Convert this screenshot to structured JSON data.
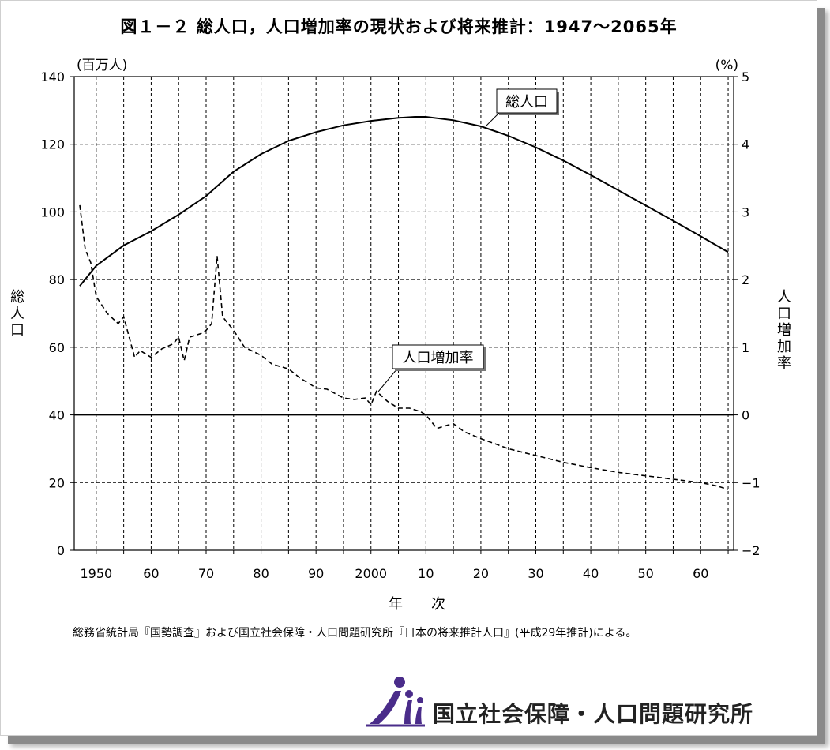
{
  "title": "図１－２ 総人口，人口増加率の現状および将来推計：1947～2065年",
  "source_note": "総務省統計局『国勢調査』および国立社会保障・人口問題研究所『日本の将来推計人口』(平成29年推計)による。",
  "logo": {
    "text": "国立社会保障・人口問題研究所",
    "icon": "ipss-figures-icon"
  },
  "chart_data": {
    "type": "line",
    "title": "図１－２ 総人口，人口増加率の現状および将来推計：1947～2065年",
    "xlabel": "年　　次",
    "x_tick_labels": [
      "1950",
      "60",
      "70",
      "80",
      "90",
      "2000",
      "10",
      "20",
      "30",
      "40",
      "50",
      "60"
    ],
    "x_tick_values": [
      1950,
      1960,
      1970,
      1980,
      1990,
      2000,
      2010,
      2020,
      2030,
      2040,
      2050,
      2060
    ],
    "xlim": [
      1946,
      2066
    ],
    "y_left": {
      "label": "総人口",
      "unit": "(百万人)",
      "lim": [
        0,
        140
      ],
      "ticks": [
        0,
        20,
        40,
        60,
        80,
        100,
        120,
        140
      ]
    },
    "y_right": {
      "label": "人口増加率",
      "unit": "(%)",
      "lim": [
        -2,
        5
      ],
      "ticks": [
        -2,
        -1,
        0,
        1,
        2,
        3,
        4,
        5
      ]
    },
    "grid": true,
    "series": [
      {
        "name": "総人口",
        "axis": "left",
        "style": "solid",
        "x": [
          1947,
          1950,
          1955,
          1960,
          1965,
          1970,
          1972,
          1975,
          1980,
          1985,
          1990,
          1995,
          2000,
          2005,
          2008,
          2010,
          2015,
          2020,
          2025,
          2030,
          2035,
          2040,
          2045,
          2050,
          2055,
          2060,
          2065
        ],
        "values": [
          78.1,
          84.1,
          90.1,
          94.3,
          99.2,
          104.7,
          107.6,
          111.9,
          117.1,
          121.0,
          123.6,
          125.6,
          126.9,
          127.8,
          128.1,
          128.1,
          127.1,
          125.3,
          122.5,
          119.1,
          115.2,
          110.9,
          106.4,
          101.9,
          97.4,
          92.8,
          88.1
        ]
      },
      {
        "name": "人口増加率",
        "axis": "right",
        "style": "dashed",
        "x": [
          1947,
          1948,
          1949,
          1950,
          1952,
          1954,
          1955,
          1957,
          1958,
          1960,
          1962,
          1964,
          1965,
          1966,
          1967,
          1969,
          1970,
          1971,
          1972,
          1973,
          1975,
          1977,
          1980,
          1982,
          1985,
          1987,
          1990,
          1992,
          1995,
          1997,
          1999,
          2000,
          2001,
          2003,
          2005,
          2007,
          2009,
          2010,
          2012,
          2014,
          2015,
          2017,
          2020,
          2025,
          2030,
          2035,
          2040,
          2045,
          2050,
          2055,
          2060,
          2063,
          2065
        ],
        "values": [
          3.1,
          2.45,
          2.25,
          1.75,
          1.5,
          1.35,
          1.45,
          0.85,
          0.95,
          0.85,
          0.98,
          1.05,
          1.15,
          0.8,
          1.15,
          1.2,
          1.25,
          1.35,
          2.35,
          1.45,
          1.25,
          1.0,
          0.88,
          0.75,
          0.68,
          0.55,
          0.4,
          0.38,
          0.25,
          0.23,
          0.25,
          0.15,
          0.35,
          0.2,
          0.1,
          0.1,
          0.05,
          0.0,
          -0.2,
          -0.15,
          -0.13,
          -0.25,
          -0.35,
          -0.5,
          -0.6,
          -0.7,
          -0.78,
          -0.85,
          -0.9,
          -0.95,
          -1.0,
          -1.05,
          -1.1
        ]
      }
    ],
    "annotations": [
      {
        "text": "総人口",
        "series": "総人口",
        "at_x": 2018
      },
      {
        "text": "人口増加率",
        "series": "人口増加率",
        "at_x": 2001
      }
    ]
  }
}
